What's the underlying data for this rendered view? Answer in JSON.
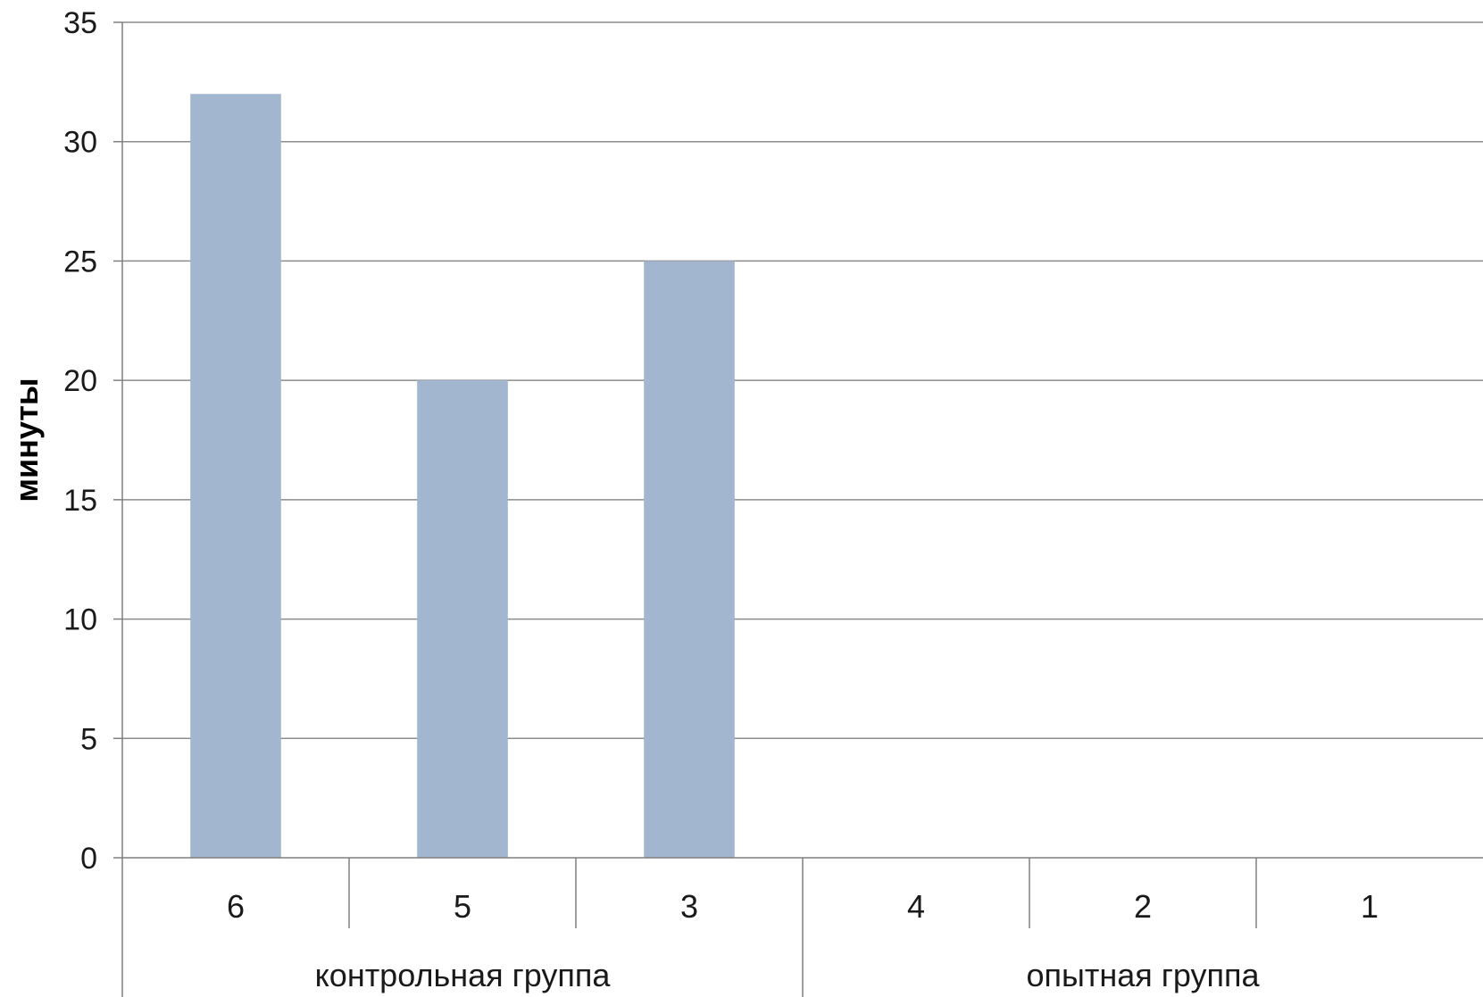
{
  "chart_data": {
    "type": "bar",
    "ylabel": "минуты",
    "xlabel": "",
    "ylim": [
      0,
      35
    ],
    "ytick_step": 5,
    "grid": true,
    "categories": [
      "6",
      "5",
      "3",
      "4",
      "2",
      "1"
    ],
    "groups": [
      {
        "label": "контрольная группа",
        "categories": [
          "6",
          "5",
          "3"
        ]
      },
      {
        "label": "опытная группа",
        "categories": [
          "4",
          "2",
          "1"
        ]
      }
    ],
    "series": [
      {
        "values": [
          32,
          20,
          25,
          0,
          0,
          0
        ]
      }
    ],
    "colors": {
      "bar": "#a2b7cf",
      "grid": "#8c8c8c",
      "axis": "#7f7f7f"
    }
  }
}
